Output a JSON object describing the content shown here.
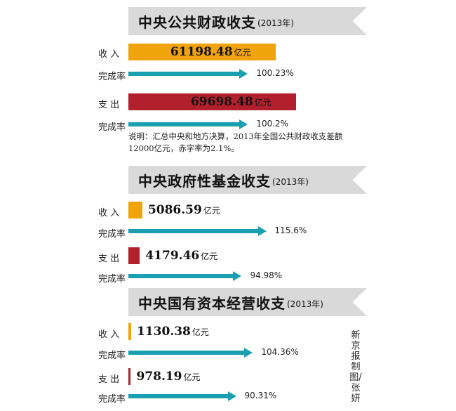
{
  "chart_data": [
    {
      "type": "bar",
      "title": "中央公共财政收支",
      "year": "(2013年)",
      "categories": [
        "收 入",
        "支 出"
      ],
      "values": [
        61198.48,
        69698.48
      ],
      "value_labels": [
        "61198.48",
        "69698.48"
      ],
      "unit": "亿元",
      "rate_label": "完成率",
      "completion_rates": [
        "100.23%",
        "100.2%"
      ],
      "completion_values": [
        100.23,
        100.2
      ],
      "note": "说明：汇总中央和地方决算，2013年全国公共财政收支差额12000亿元，赤字率为2.1%。",
      "colors": [
        "#f0a30a",
        "#b21f2d"
      ]
    },
    {
      "type": "bar",
      "title": "中央政府性基金收支",
      "year": "(2013年)",
      "categories": [
        "收 入",
        "支 出"
      ],
      "values": [
        5086.59,
        4179.46
      ],
      "value_labels": [
        "5086.59",
        "4179.46"
      ],
      "unit": "亿元",
      "rate_label": "完成率",
      "completion_rates": [
        "115.6%",
        "94.98%"
      ],
      "completion_values": [
        115.6,
        94.98
      ],
      "colors": [
        "#f0a30a",
        "#b21f2d"
      ]
    },
    {
      "type": "bar",
      "title": "中央国有资本经营收支",
      "year": "(2013年)",
      "categories": [
        "收 入",
        "支 出"
      ],
      "values": [
        1130.38,
        978.19
      ],
      "value_labels": [
        "1130.38",
        "978.19"
      ],
      "unit": "亿元",
      "rate_label": "完成率",
      "completion_rates": [
        "104.36%",
        "90.31%"
      ],
      "completion_values": [
        104.36,
        90.31
      ],
      "colors": [
        "#f0a30a",
        "#b21f2d"
      ]
    }
  ],
  "credit": "新京报制图/张妍",
  "arrow_color": "#1a9fb0"
}
